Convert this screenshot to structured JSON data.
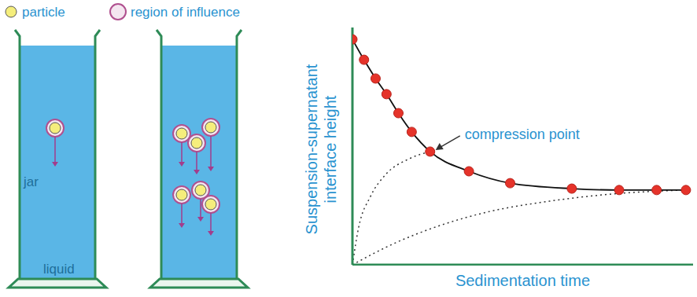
{
  "legend": [
    {
      "label": "particle"
    },
    {
      "label": "region of influence"
    }
  ],
  "labels": {
    "jar": "jar",
    "liquid": "liquid"
  },
  "chart_data": {
    "type": "line",
    "xlabel": "Sedimentation time",
    "ylabel": "Suspension-supernatant interface height",
    "x": [
      0,
      3.4,
      6.8,
      10.0,
      13.5,
      17.4,
      22.8,
      34.2,
      46.3,
      64.4,
      78.3,
      89.3,
      97.9
    ],
    "values": [
      95.0,
      86.4,
      78.5,
      71.9,
      63.9,
      56.0,
      47.7,
      39.4,
      34.4,
      32.1,
      31.5,
      31.5,
      31.5
    ],
    "color": "#e5332a",
    "marker": "circle",
    "xlim": [
      0,
      100
    ],
    "ylim": [
      0,
      100
    ],
    "xticks": [],
    "yticks": [],
    "tick_labels": false,
    "annotations": [
      {
        "text": "compression point",
        "x": 22.8,
        "y": 47.7
      }
    ],
    "guides": [
      {
        "x": [
          0,
          1.8,
          5.3,
          9.8,
          16.7,
          22.8
        ],
        "values": [
          0,
          15.6,
          28.8,
          38.1,
          44.7,
          47.7
        ],
        "line_style": "dotted"
      },
      {
        "x": [
          0,
          12.1,
          25.8,
          39.5,
          57.8,
          76.0,
          97.9
        ],
        "values": [
          0,
          8.9,
          16.6,
          22.2,
          26.8,
          29.8,
          31.5
        ],
        "line_style": "dotted"
      }
    ]
  }
}
